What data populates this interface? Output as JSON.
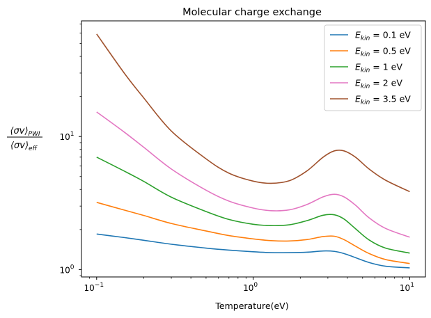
{
  "chart_data": {
    "type": "line",
    "title": "Molecular charge exchange",
    "xlabel": "Temperature(eV)",
    "ylabel": {
      "numerator": "⟨σv⟩",
      "numerator_sub": "PWI",
      "denominator": "⟨σv⟩",
      "denominator_sub": "eff"
    },
    "xscale": "log",
    "yscale": "log",
    "xlim": [
      0.08,
      12.6
    ],
    "ylim": [
      0.88,
      74
    ],
    "x_ticks": [
      {
        "value": 0.1,
        "base": "10",
        "exp": "−1"
      },
      {
        "value": 1,
        "base": "10",
        "exp": "0"
      },
      {
        "value": 10,
        "base": "10",
        "exp": "1"
      }
    ],
    "y_ticks": [
      {
        "value": 1,
        "base": "10",
        "exp": "0"
      },
      {
        "value": 10,
        "base": "10",
        "exp": "1"
      }
    ],
    "legend_position": "top-right",
    "x": [
      0.1,
      0.15,
      0.2,
      0.3,
      0.5,
      0.7,
      1.0,
      1.3,
      1.7,
      2.2,
      2.8,
      3.3,
      3.8,
      4.5,
      5.5,
      7.0,
      10.0
    ],
    "series": [
      {
        "name": "0.1",
        "color": "#1f77b4",
        "values": [
          1.85,
          1.74,
          1.66,
          1.55,
          1.45,
          1.4,
          1.36,
          1.34,
          1.34,
          1.35,
          1.38,
          1.37,
          1.32,
          1.23,
          1.13,
          1.06,
          1.03
        ]
      },
      {
        "name": "0.5",
        "color": "#ff7f0e",
        "values": [
          3.2,
          2.8,
          2.55,
          2.22,
          1.95,
          1.8,
          1.7,
          1.65,
          1.64,
          1.68,
          1.77,
          1.78,
          1.68,
          1.5,
          1.32,
          1.19,
          1.11
        ]
      },
      {
        "name": "1",
        "color": "#2ca02c",
        "values": [
          7.0,
          5.5,
          4.6,
          3.5,
          2.73,
          2.38,
          2.19,
          2.14,
          2.17,
          2.33,
          2.56,
          2.58,
          2.4,
          2.03,
          1.67,
          1.45,
          1.33
        ]
      },
      {
        "name": "2",
        "color": "#e377c2",
        "values": [
          15.3,
          10.8,
          8.3,
          5.7,
          3.95,
          3.27,
          2.9,
          2.77,
          2.81,
          3.08,
          3.52,
          3.68,
          3.52,
          3.05,
          2.45,
          2.04,
          1.75
        ]
      },
      {
        "name": "3.5",
        "color": "#a0522d",
        "values": [
          59.0,
          30.0,
          19.5,
          11.0,
          6.8,
          5.3,
          4.62,
          4.45,
          4.65,
          5.5,
          7.0,
          7.8,
          7.8,
          7.0,
          5.7,
          4.7,
          3.85
        ]
      }
    ],
    "legend_prefix": "E",
    "legend_sub": "kin",
    "legend_eq": " = ",
    "legend_unit": " eV"
  }
}
